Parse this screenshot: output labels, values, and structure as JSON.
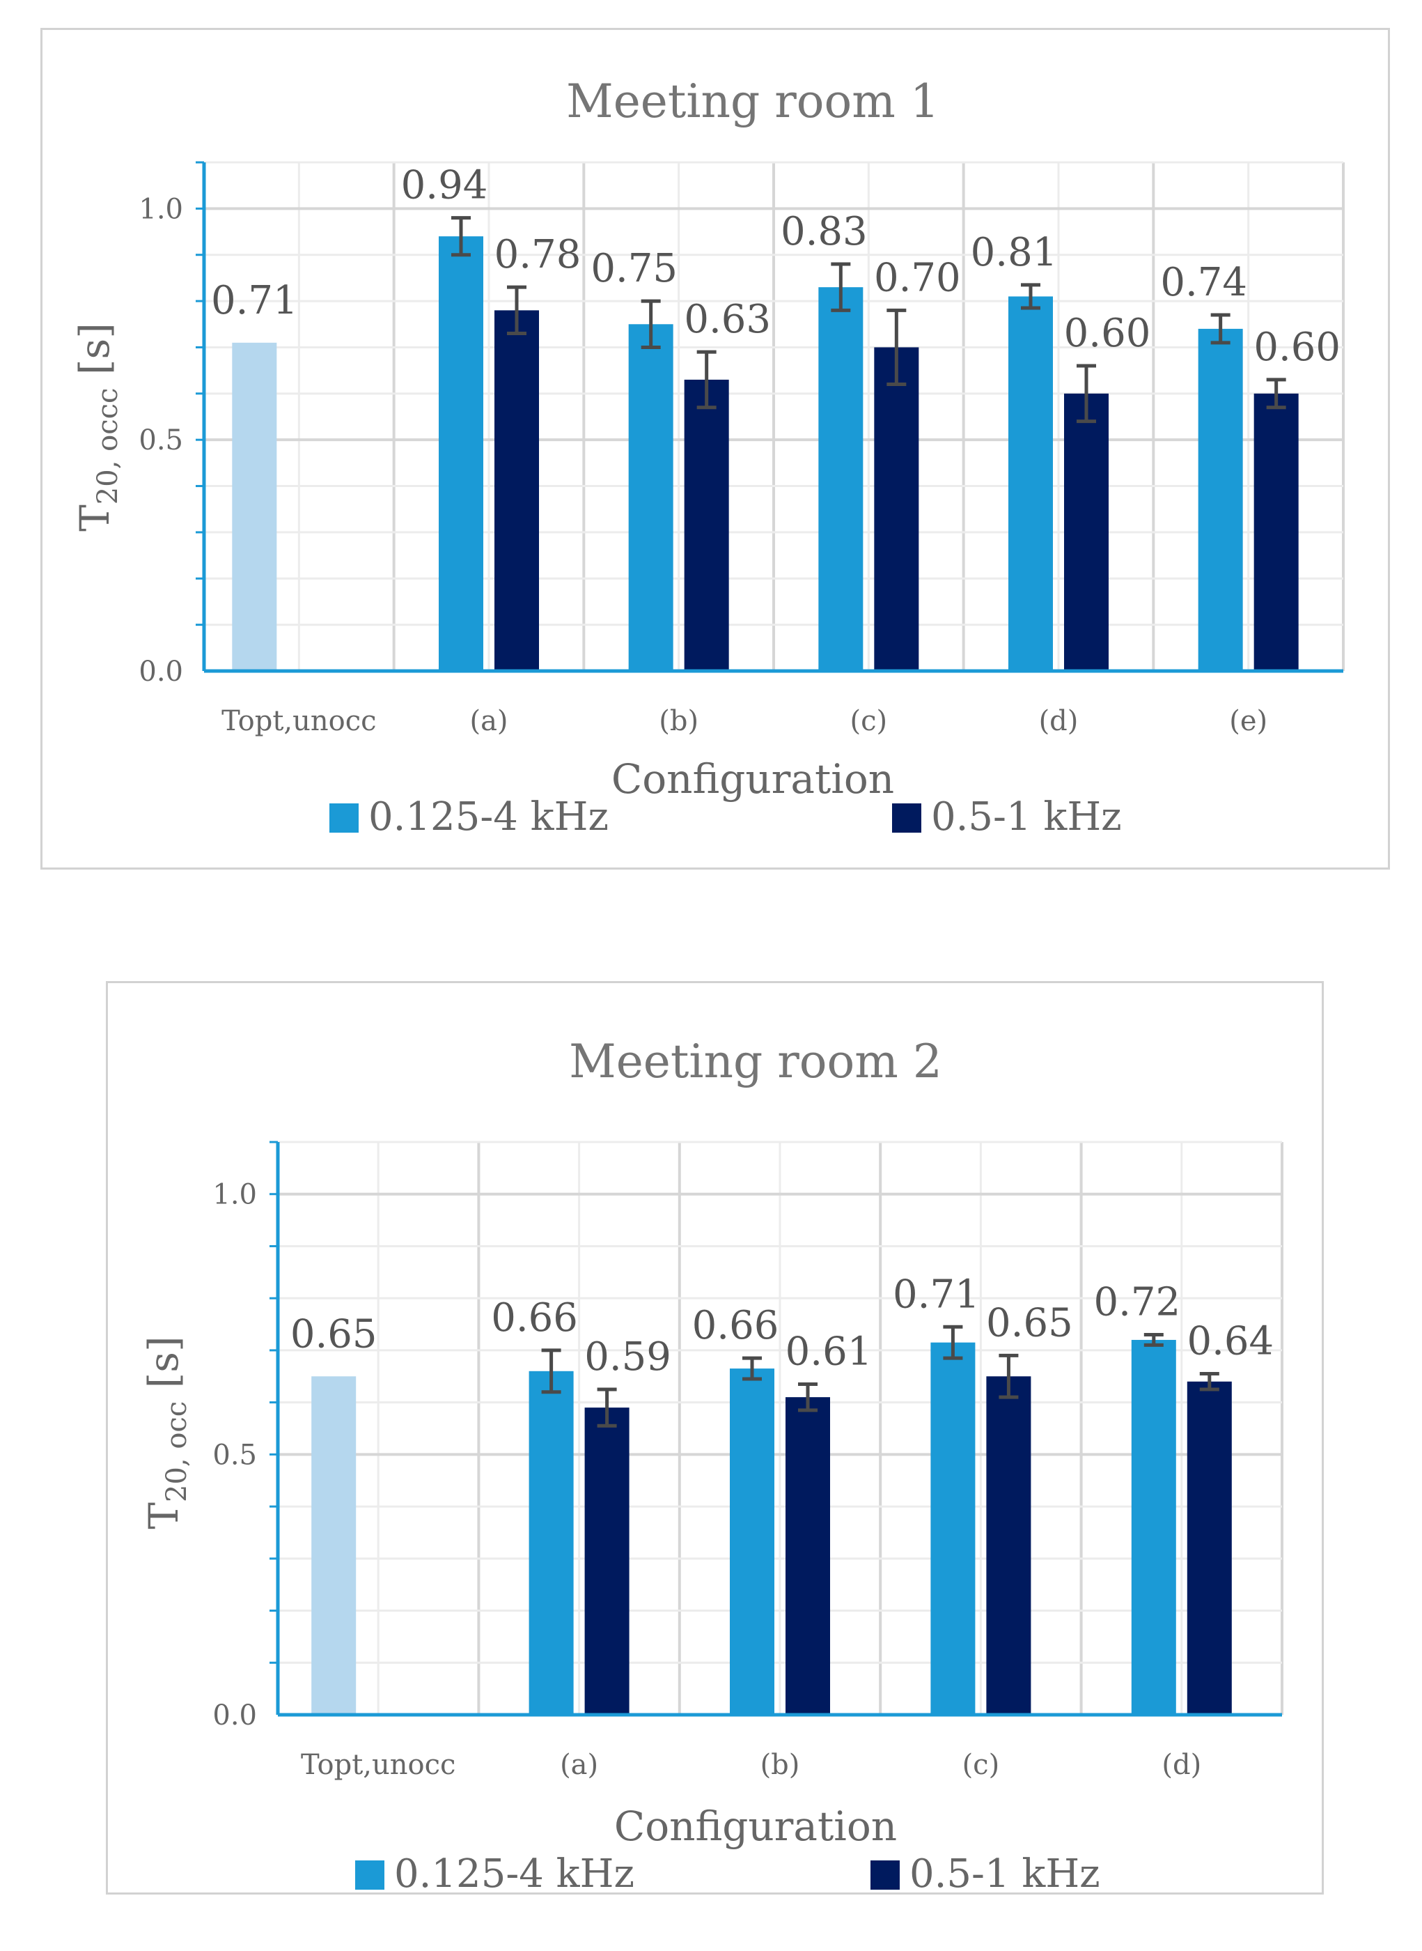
{
  "chart_data": [
    {
      "type": "bar",
      "title": "Meeting room 1",
      "xlabel": "Configuration",
      "ylabel_main": "T",
      "ylabel_sub": "20, occc",
      "ylabel_unit": " [s]",
      "ylim": [
        0,
        1.1
      ],
      "yticks": [
        "0.0",
        "0.5",
        "1.0"
      ],
      "ytick_values": [
        0,
        0.5,
        1.0
      ],
      "categories": [
        "Topt,unocc",
        "(a)",
        "(b)",
        "(c)",
        "(d)",
        "(e)"
      ],
      "reference": {
        "category": "Topt,unocc",
        "value": 0.71,
        "label": "0.71",
        "color": "#b5d7ee"
      },
      "series": [
        {
          "name": "0.125-4 kHz",
          "color": "#1b9ad6",
          "values": [
            null,
            0.94,
            0.75,
            0.83,
            0.81,
            0.74
          ],
          "labels": [
            "",
            "0.94",
            "0.75",
            "0.83",
            "0.81",
            "0.74"
          ],
          "errors": [
            null,
            0.04,
            0.05,
            0.05,
            0.025,
            0.03
          ]
        },
        {
          "name": "0.5-1 kHz",
          "color": "#001a5e",
          "values": [
            null,
            0.78,
            0.63,
            0.7,
            0.6,
            0.6
          ],
          "labels": [
            "",
            "0.78",
            "0.63",
            "0.70",
            "0.60",
            "0.60"
          ],
          "errors": [
            null,
            0.05,
            0.06,
            0.08,
            0.06,
            0.03
          ]
        }
      ],
      "legend_position": "bottom"
    },
    {
      "type": "bar",
      "title": "Meeting room 2",
      "xlabel": "Configuration",
      "ylabel_main": "T",
      "ylabel_sub": "20, occ",
      "ylabel_unit": " [s]",
      "ylim": [
        0,
        1.1
      ],
      "yticks": [
        "0.0",
        "0.5",
        "1.0"
      ],
      "ytick_values": [
        0,
        0.5,
        1.0
      ],
      "categories": [
        "Topt,unocc",
        "(a)",
        "(b)",
        "(c)",
        "(d)"
      ],
      "reference": {
        "category": "Topt,unocc",
        "value": 0.65,
        "label": "0.65",
        "color": "#b5d7ee"
      },
      "series": [
        {
          "name": "0.125-4 kHz",
          "color": "#1b9ad6",
          "values": [
            null,
            0.66,
            0.665,
            0.715,
            0.72
          ],
          "labels": [
            "",
            "0.66",
            "0.66",
            "0.71",
            "0.72"
          ],
          "errors": [
            null,
            0.04,
            0.02,
            0.03,
            0.01
          ]
        },
        {
          "name": "0.5-1 kHz",
          "color": "#001a5e",
          "values": [
            null,
            0.59,
            0.61,
            0.65,
            0.64
          ],
          "labels": [
            "",
            "0.59",
            "0.61",
            "0.65",
            "0.64"
          ],
          "errors": [
            null,
            0.035,
            0.025,
            0.04,
            0.015
          ]
        }
      ],
      "legend_position": "bottom"
    }
  ]
}
